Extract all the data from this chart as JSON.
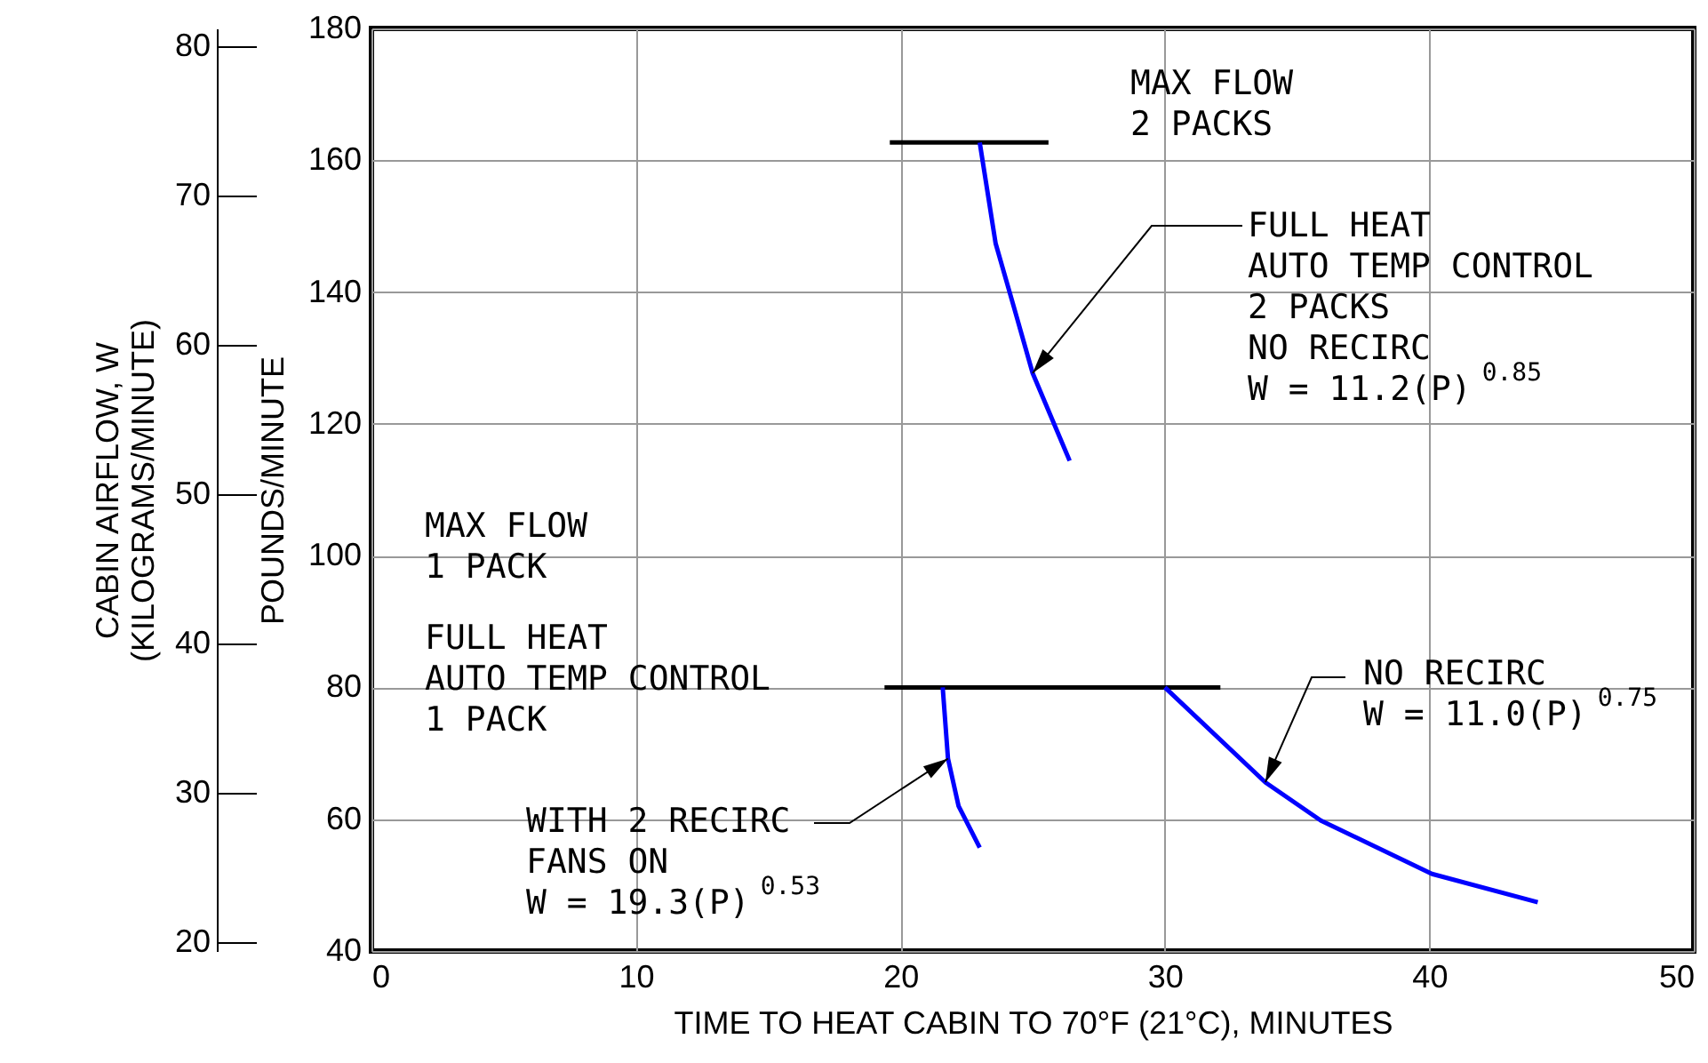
{
  "chart_data": {
    "type": "line",
    "xlabel": "TIME TO HEAT CABIN TO 70°F (21°C), MINUTES",
    "ylabel": "POUNDS/MINUTE",
    "y2label": "CABIN AIRFLOW, W\n(KILOGRAMS/MINUTE)",
    "xlim": [
      0,
      50
    ],
    "xticks": [
      0,
      10,
      20,
      30,
      40,
      50
    ],
    "ylim": [
      40,
      180
    ],
    "yticks": [
      40,
      60,
      80,
      100,
      120,
      140,
      160,
      180
    ],
    "y2lim": [
      19.4,
      81.2
    ],
    "y2ticks": [
      20,
      30,
      40,
      50,
      60,
      70,
      80
    ],
    "grid": true,
    "series": [
      {
        "color": "#000000",
        "x": [
          19.6,
          25.6
        ],
        "values": [
          162.7,
          162.7
        ]
      },
      {
        "color": "#000000",
        "x": [
          19.4,
          32.1
        ],
        "values": [
          80,
          80
        ]
      },
      {
        "color": "#0000ff",
        "x": [
          23.0,
          23.6,
          24.3,
          25.0,
          26.4
        ],
        "values": [
          162.7,
          147.4,
          137.6,
          127.7,
          114.4
        ]
      },
      {
        "color": "#0000ff",
        "x": [
          21.6,
          21.8,
          22.2,
          23.0
        ],
        "values": [
          80,
          69.2,
          62.0,
          55.7
        ]
      },
      {
        "color": "#0000ff",
        "x": [
          30.0,
          33.8,
          35.9,
          40.1,
          44.1
        ],
        "values": [
          80,
          65.6,
          59.8,
          51.7,
          47.4
        ]
      }
    ],
    "annotations": [
      "MAX FLOW\n2 PACKS",
      {
        "text": "FULL HEAT\nAUTO TEMP CONTROL\n2 PACKS\nNO RECIRC\nW = 11.2(P)$^{0.85}$",
        "x": 25.0,
        "y": 127.7
      },
      "MAX FLOW\n1 PACK",
      "FULL HEAT\nAUTO TEMP CONTROL\n1 PACK",
      {
        "text": "WITH 2 RECIRC\nFANS ON\nW = 19.3(P)$^{0.53}$",
        "x": 21.8,
        "y": 69.2
      },
      {
        "text": "NO RECIRC\nW = 11.0(P)$^{0.75}$",
        "x": 33.8,
        "y": 65.6
      }
    ]
  }
}
